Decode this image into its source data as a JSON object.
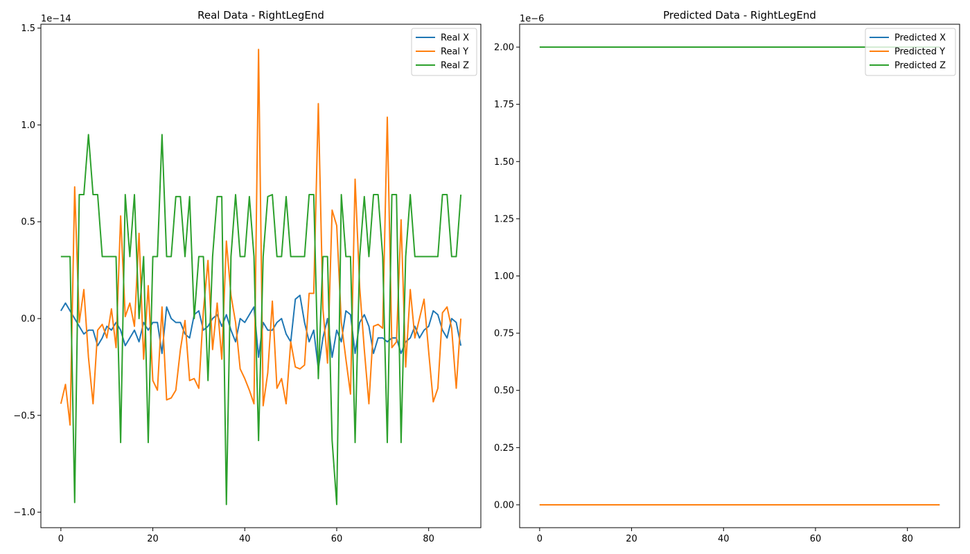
{
  "chart_data": [
    {
      "type": "line",
      "title": "Real Data - RightLegEnd",
      "xlabel": "",
      "ylabel": "",
      "xlim": [
        -4.35,
        91.35
      ],
      "ylim": [
        -1.08,
        1.52
      ],
      "y_exponent_label": "1e−14",
      "x_ticks": [
        0,
        20,
        40,
        60,
        80
      ],
      "x_tick_labels": [
        "0",
        "20",
        "40",
        "60",
        "80"
      ],
      "y_ticks": [
        -1.0,
        -0.5,
        0.0,
        0.5,
        1.0,
        1.5
      ],
      "y_tick_labels": [
        "−1.0",
        "−0.5",
        "0.0",
        "0.5",
        "1.0",
        "1.5"
      ],
      "legend": "top-right",
      "grid": false,
      "x": [
        0,
        1,
        2,
        3,
        4,
        5,
        6,
        7,
        8,
        9,
        10,
        11,
        12,
        13,
        14,
        15,
        16,
        17,
        18,
        19,
        20,
        21,
        22,
        23,
        24,
        25,
        26,
        27,
        28,
        29,
        30,
        31,
        32,
        33,
        34,
        35,
        36,
        37,
        38,
        39,
        40,
        41,
        42,
        43,
        44,
        45,
        46,
        47,
        48,
        49,
        50,
        51,
        52,
        53,
        54,
        55,
        56,
        57,
        58,
        59,
        60,
        61,
        62,
        63,
        64,
        65,
        66,
        67,
        68,
        69,
        70,
        71,
        72,
        73,
        74,
        75,
        76,
        77,
        78,
        79,
        80,
        81,
        82,
        83,
        84,
        85,
        86,
        87
      ],
      "series": [
        {
          "name": "Real X",
          "color": "#1f77b4",
          "values": [
            0.04,
            0.08,
            0.04,
            0.0,
            -0.04,
            -0.08,
            -0.06,
            -0.06,
            -0.14,
            -0.1,
            -0.04,
            -0.06,
            -0.02,
            -0.06,
            -0.14,
            -0.1,
            -0.06,
            -0.12,
            -0.02,
            -0.06,
            -0.02,
            -0.02,
            -0.18,
            0.06,
            0.0,
            -0.02,
            -0.02,
            -0.08,
            -0.1,
            0.02,
            0.04,
            -0.06,
            -0.04,
            0.0,
            0.02,
            -0.04,
            0.02,
            -0.06,
            -0.12,
            0.0,
            -0.02,
            0.02,
            0.06,
            -0.2,
            -0.02,
            -0.06,
            -0.06,
            -0.02,
            0.0,
            -0.08,
            -0.12,
            0.1,
            0.12,
            -0.02,
            -0.12,
            -0.06,
            -0.26,
            -0.1,
            0.0,
            -0.2,
            -0.06,
            -0.12,
            0.04,
            0.02,
            -0.18,
            -0.02,
            0.02,
            -0.04,
            -0.18,
            -0.1,
            -0.1,
            -0.12,
            -0.1,
            -0.1,
            -0.18,
            -0.12,
            -0.1,
            -0.04,
            -0.1,
            -0.06,
            -0.04,
            0.04,
            0.02,
            -0.06,
            -0.1,
            0.0,
            -0.02,
            -0.14
          ]
        },
        {
          "name": "Real Y",
          "color": "#ff7f0e",
          "values": [
            -0.44,
            -0.34,
            -0.55,
            0.68,
            -0.02,
            0.15,
            -0.2,
            -0.44,
            -0.06,
            -0.03,
            -0.1,
            0.05,
            -0.15,
            0.53,
            0.01,
            0.08,
            -0.04,
            0.44,
            -0.21,
            0.17,
            -0.32,
            -0.37,
            0.06,
            -0.42,
            -0.41,
            -0.37,
            -0.16,
            -0.01,
            -0.32,
            -0.31,
            -0.36,
            0.04,
            0.3,
            -0.16,
            0.08,
            -0.21,
            0.4,
            0.12,
            -0.02,
            -0.26,
            -0.31,
            -0.37,
            -0.44,
            1.39,
            -0.45,
            -0.28,
            0.09,
            -0.36,
            -0.31,
            -0.44,
            -0.12,
            -0.25,
            -0.26,
            -0.24,
            0.13,
            0.13,
            1.11,
            0.05,
            -0.23,
            0.56,
            0.48,
            -0.02,
            -0.21,
            -0.39,
            0.72,
            0.16,
            -0.16,
            -0.44,
            -0.04,
            -0.03,
            -0.05,
            1.04,
            -0.15,
            -0.12,
            0.51,
            -0.25,
            0.15,
            -0.1,
            0.0,
            0.1,
            -0.17,
            -0.43,
            -0.36,
            0.03,
            0.06,
            -0.05,
            -0.36,
            0.0
          ]
        },
        {
          "name": "Real Z",
          "color": "#2ca02c",
          "values": [
            0.32,
            0.32,
            0.32,
            -0.95,
            0.64,
            0.64,
            0.95,
            0.64,
            0.64,
            0.32,
            0.32,
            0.32,
            0.32,
            -0.64,
            0.64,
            0.32,
            0.64,
            0.0,
            0.32,
            -0.64,
            0.32,
            0.32,
            0.95,
            0.32,
            0.32,
            0.63,
            0.63,
            0.32,
            0.63,
            0.0,
            0.32,
            0.32,
            -0.32,
            0.32,
            0.63,
            0.63,
            -0.96,
            0.32,
            0.64,
            0.32,
            0.32,
            0.63,
            0.32,
            -0.63,
            0.32,
            0.63,
            0.64,
            0.32,
            0.32,
            0.63,
            0.32,
            0.32,
            0.32,
            0.32,
            0.64,
            0.64,
            -0.31,
            0.32,
            0.32,
            -0.63,
            -0.96,
            0.64,
            0.32,
            0.32,
            -0.64,
            0.32,
            0.63,
            0.32,
            0.64,
            0.64,
            0.32,
            -0.64,
            0.64,
            0.64,
            -0.64,
            0.32,
            0.64,
            0.32,
            0.32,
            0.32,
            0.32,
            0.32,
            0.32,
            0.64,
            0.64,
            0.32,
            0.32,
            0.64
          ]
        }
      ]
    },
    {
      "type": "line",
      "title": "Predicted Data - RightLegEnd",
      "xlabel": "",
      "ylabel": "",
      "xlim": [
        -4.35,
        91.35
      ],
      "ylim": [
        -0.1,
        2.1
      ],
      "y_exponent_label": "1e−6",
      "x_ticks": [
        0,
        20,
        40,
        60,
        80
      ],
      "x_tick_labels": [
        "0",
        "20",
        "40",
        "60",
        "80"
      ],
      "y_ticks": [
        0.0,
        0.25,
        0.5,
        0.75,
        1.0,
        1.25,
        1.5,
        1.75,
        2.0
      ],
      "y_tick_labels": [
        "0.00",
        "0.25",
        "0.50",
        "0.75",
        "1.00",
        "1.25",
        "1.50",
        "1.75",
        "2.00"
      ],
      "legend": "top-right",
      "grid": false,
      "x_range": [
        0,
        87
      ],
      "series": [
        {
          "name": "Predicted X",
          "color": "#1f77b4",
          "values_constant": 0.0
        },
        {
          "name": "Predicted Y",
          "color": "#ff7f0e",
          "values_constant": 0.0
        },
        {
          "name": "Predicted Z",
          "color": "#2ca02c",
          "values_constant": 2.0
        }
      ]
    }
  ]
}
